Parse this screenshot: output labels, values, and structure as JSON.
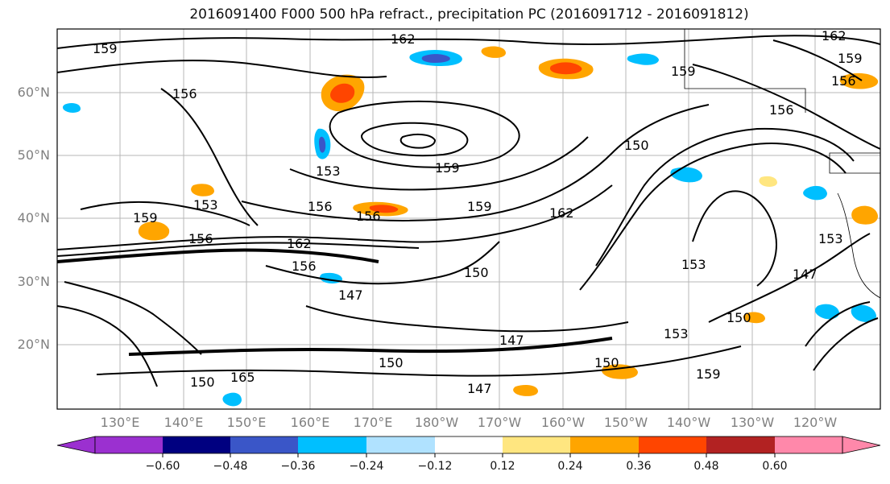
{
  "title": "2016091400 F000 500 hPa refract., precipitation PC (2016091712 - 2016091812)",
  "lat_labels": [
    "60°N",
    "50°N",
    "40°N",
    "30°N",
    "20°N"
  ],
  "lon_labels": [
    "130°E",
    "140°E",
    "150°E",
    "160°E",
    "170°E",
    "180°W",
    "170°W",
    "160°W",
    "150°W",
    "140°W",
    "130°W",
    "120°W"
  ],
  "colorbar": {
    "ticks": [
      "−0.60",
      "−0.48",
      "−0.36",
      "−0.24",
      "−0.12",
      "0.12",
      "0.24",
      "0.36",
      "0.48",
      "0.60"
    ],
    "colors": [
      "#9b30d0",
      "#000080",
      "#3a56c8",
      "#00bfff",
      "#b0e2ff",
      "#ffffff",
      "#ffe680",
      "#ffa500",
      "#ff4500",
      "#b22222",
      "#ff88aa"
    ]
  },
  "contour_labels": [
    "162",
    "159",
    "159",
    "162",
    "156",
    "156",
    "153",
    "159",
    "159",
    "156",
    "150",
    "153",
    "159",
    "156",
    "156",
    "162",
    "162",
    "156",
    "150",
    "147",
    "153",
    "147",
    "147",
    "150",
    "150",
    "147",
    "153",
    "150",
    "159",
    "150",
    "165",
    "159",
    "156",
    "153"
  ],
  "legend_colors": {
    "accent_red": "#ff4500",
    "accent_orange": "#ffa500",
    "accent_blue": "#00bfff",
    "accent_purple": "#3a56c8"
  }
}
